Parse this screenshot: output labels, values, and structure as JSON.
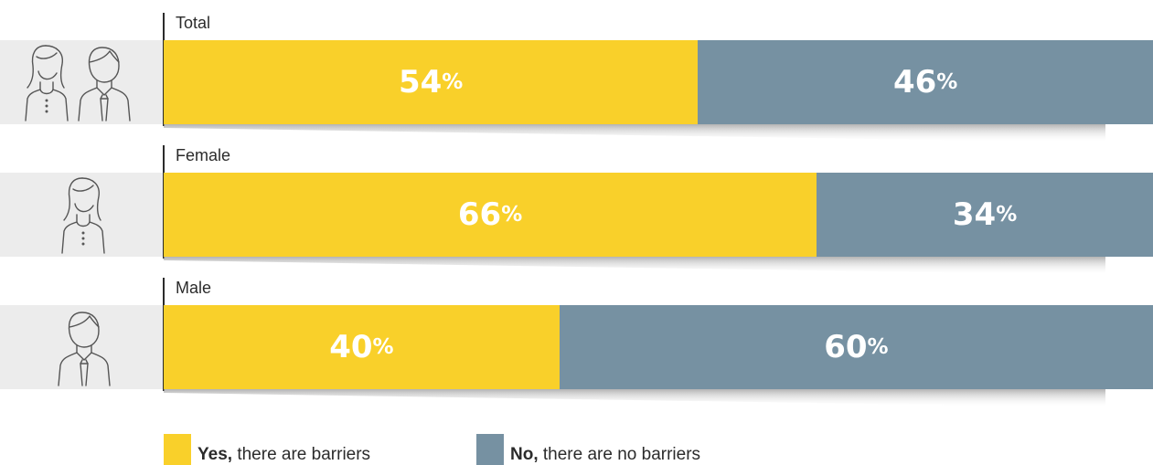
{
  "chart_data": {
    "type": "bar",
    "orientation": "horizontal",
    "stacked": true,
    "categories": [
      "Total",
      "Female",
      "Male"
    ],
    "series": [
      {
        "name": "Yes, there are barriers",
        "color": "#f9d02a",
        "values": [
          54,
          66,
          40
        ]
      },
      {
        "name": "No, there are no barriers",
        "color": "#7691a2",
        "values": [
          46,
          34,
          60
        ]
      }
    ],
    "value_suffix": "%",
    "ylim": [
      0,
      100
    ],
    "grid": false,
    "legend_position": "bottom-left"
  },
  "rows": [
    {
      "label": "Total",
      "icon": "female-and-male-person-icon",
      "yes": "54",
      "no": "46"
    },
    {
      "label": "Female",
      "icon": "female-person-icon",
      "yes": "66",
      "no": "34"
    },
    {
      "label": "Male",
      "icon": "male-person-icon",
      "yes": "40",
      "no": "60"
    }
  ],
  "percent_sign": "%",
  "legend": {
    "yes_bold": "Yes,",
    "yes_rest": " there are barriers",
    "no_bold": "No,",
    "no_rest": " there are no barriers"
  },
  "colors": {
    "yes": "#f9d02a",
    "no": "#7691a2",
    "icon_panel": "#ececec"
  }
}
